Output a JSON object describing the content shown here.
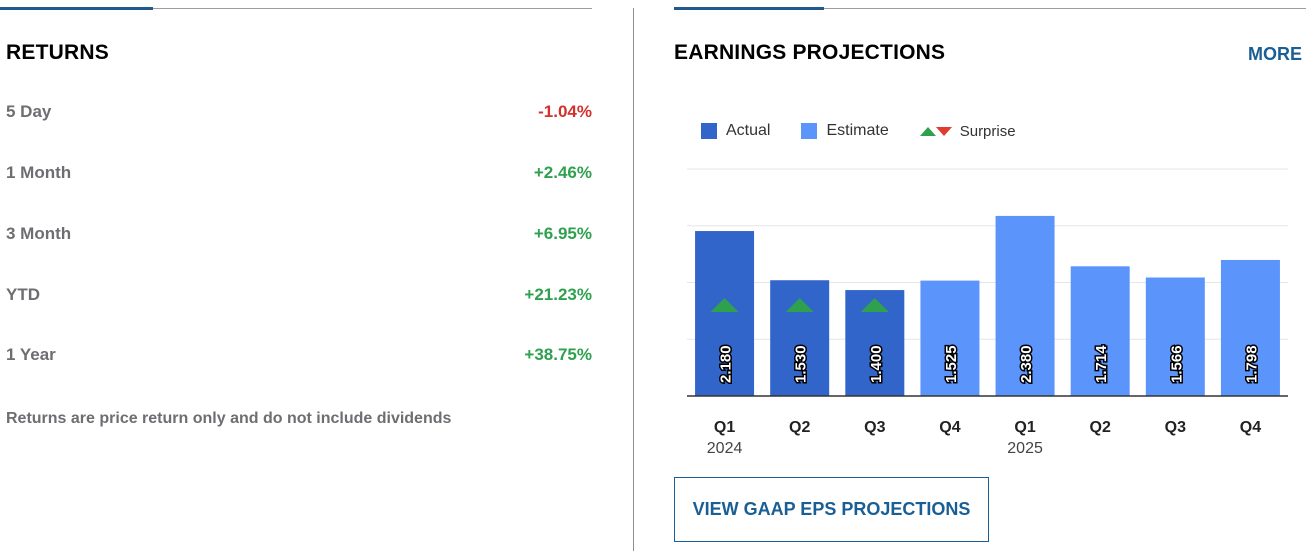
{
  "returns": {
    "title": "RETURNS",
    "rows": [
      {
        "label": "5 Day",
        "value": "-1.04%",
        "sign": "neg"
      },
      {
        "label": "1 Month",
        "value": "+2.46%",
        "sign": "pos"
      },
      {
        "label": "3 Month",
        "value": "+6.95%",
        "sign": "pos"
      },
      {
        "label": "YTD",
        "value": "+21.23%",
        "sign": "pos"
      },
      {
        "label": "1 Year",
        "value": "+38.75%",
        "sign": "pos"
      }
    ],
    "footnote": "Returns are price return only and do not include dividends"
  },
  "earnings": {
    "title": "EARNINGS PROJECTIONS",
    "more_label": "MORE",
    "legend": {
      "actual": "Actual",
      "estimate": "Estimate",
      "surprise": "Surprise"
    },
    "button_label": "VIEW GAAP EPS PROJECTIONS"
  },
  "colors": {
    "actual": "#3265c9",
    "estimate": "#5b94fb",
    "surprise_up": "#2fa14e",
    "surprise_down": "#e03a31",
    "negative": "#d3312e",
    "positive": "#2fa14e",
    "link": "#1a5e96"
  },
  "chart_data": {
    "type": "bar",
    "categories": [
      "Q1",
      "Q2",
      "Q3",
      "Q4",
      "Q1",
      "Q2",
      "Q3",
      "Q4"
    ],
    "years": [
      "2024",
      "",
      "",
      "",
      "2025",
      "",
      "",
      ""
    ],
    "series": [
      {
        "name": "Actual",
        "values": [
          2.18,
          1.53,
          1.4,
          null,
          null,
          null,
          null,
          null
        ]
      },
      {
        "name": "Estimate",
        "values": [
          null,
          null,
          null,
          1.525,
          2.38,
          1.714,
          1.566,
          1.798
        ]
      }
    ],
    "labels": [
      "2.180",
      "1.530",
      "1.400",
      "1.525",
      "2.380",
      "1.714",
      "1.566",
      "1.798"
    ],
    "surprise": [
      "up",
      "up",
      "up",
      null,
      null,
      null,
      null,
      null
    ],
    "ylim": [
      0,
      3
    ],
    "grid": true,
    "legend_position": "top-left"
  }
}
